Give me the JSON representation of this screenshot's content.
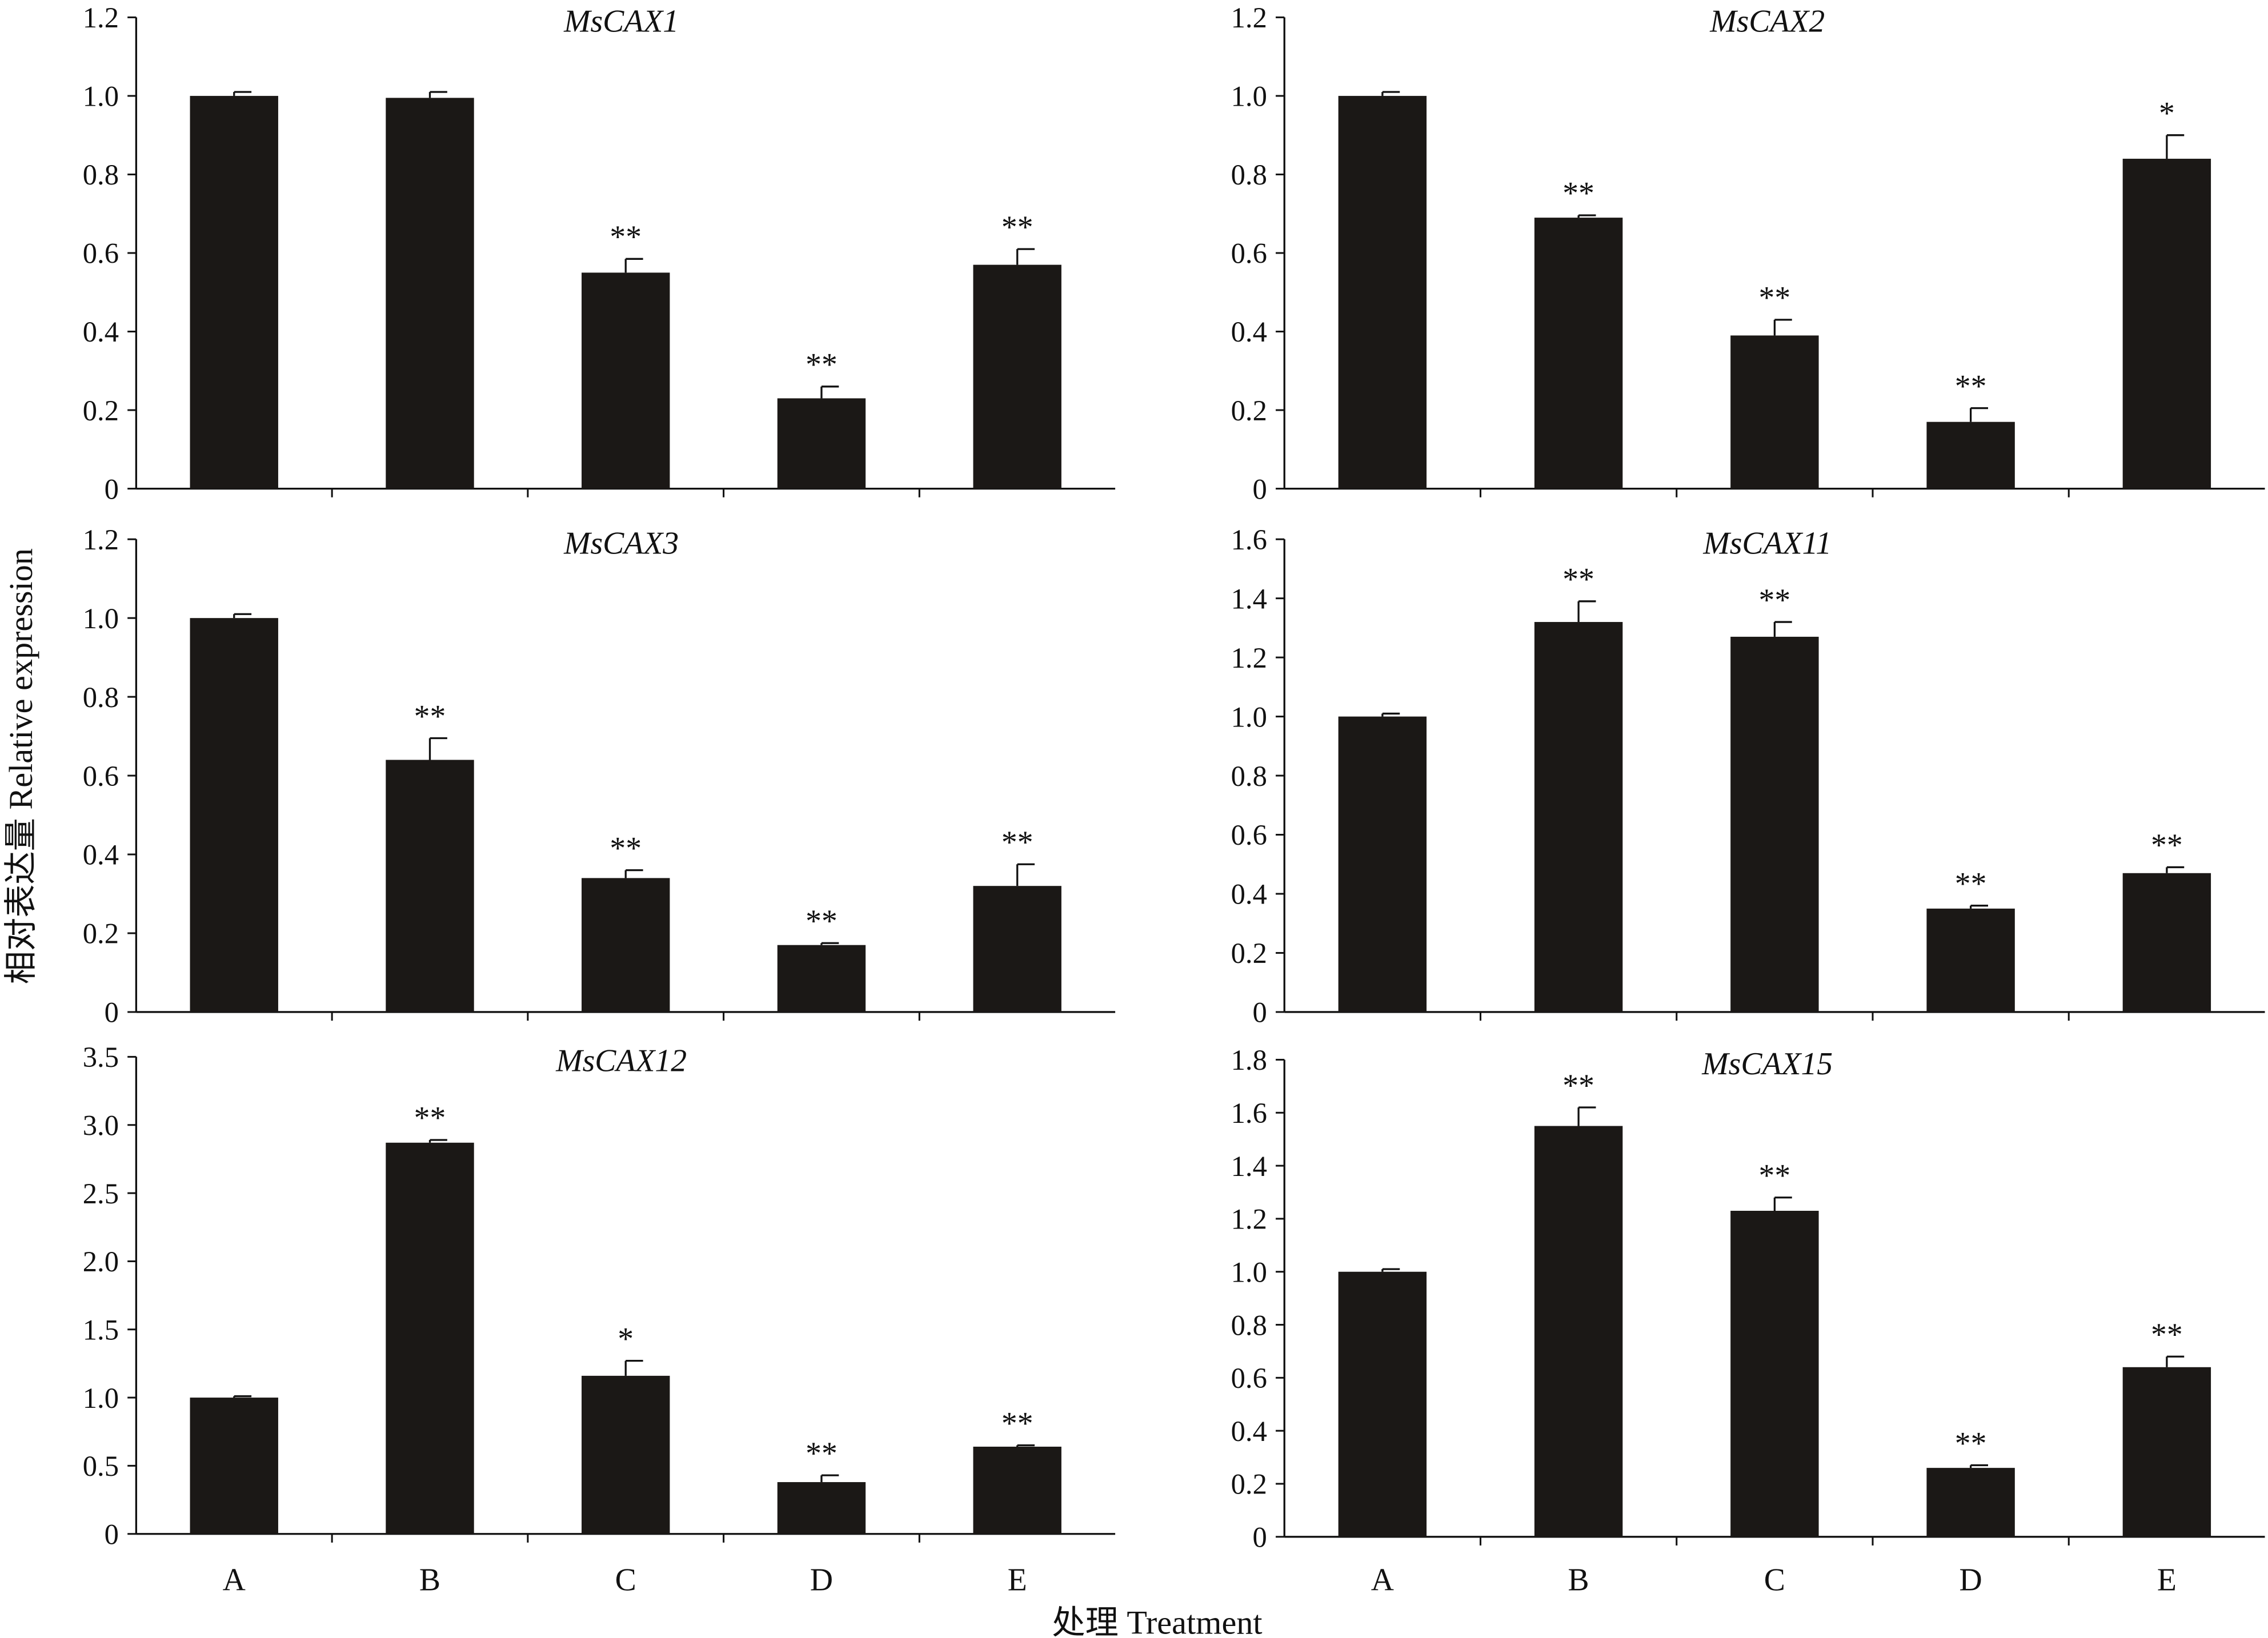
{
  "chart_data": {
    "type": "bar",
    "ylabel": "相对表达量 Relative expression",
    "xlabel": "处理 Treatment",
    "categories": [
      "A",
      "B",
      "C",
      "D",
      "E"
    ],
    "bar_color": "#1b1816",
    "panels": [
      {
        "title": "MsCAX1",
        "ylim": [
          0,
          1.2
        ],
        "ystep": 0.2,
        "yticks": [
          "0",
          "0.2",
          "0.4",
          "0.6",
          "0.8",
          "1.0",
          "1.2"
        ],
        "values": [
          1.0,
          0.995,
          0.55,
          0.23,
          0.57
        ],
        "errors": [
          0.01,
          0.015,
          0.035,
          0.03,
          0.04
        ],
        "significance": [
          "",
          "",
          "**",
          "**",
          "**"
        ]
      },
      {
        "title": "MsCAX2",
        "ylim": [
          0,
          1.2
        ],
        "ystep": 0.2,
        "yticks": [
          "0",
          "0.2",
          "0.4",
          "0.6",
          "0.8",
          "1.0",
          "1.2"
        ],
        "values": [
          1.0,
          0.69,
          0.39,
          0.17,
          0.84
        ],
        "errors": [
          0.01,
          0.006,
          0.04,
          0.035,
          0.06
        ],
        "significance": [
          "",
          "**",
          "**",
          "**",
          "*"
        ]
      },
      {
        "title": "MsCAX3",
        "ylim": [
          0,
          1.2
        ],
        "ystep": 0.2,
        "yticks": [
          "0",
          "0.2",
          "0.4",
          "0.6",
          "0.8",
          "1.0",
          "1.2"
        ],
        "values": [
          1.0,
          0.64,
          0.34,
          0.17,
          0.32
        ],
        "errors": [
          0.01,
          0.055,
          0.02,
          0.005,
          0.055
        ],
        "significance": [
          "",
          "**",
          "**",
          "**",
          "**"
        ]
      },
      {
        "title": "MsCAX11",
        "ylim": [
          0,
          1.6
        ],
        "ystep": 0.2,
        "yticks": [
          "0",
          "0.2",
          "0.4",
          "0.6",
          "0.8",
          "1.0",
          "1.2",
          "1.4",
          "1.6"
        ],
        "values": [
          1.0,
          1.32,
          1.27,
          0.35,
          0.47
        ],
        "errors": [
          0.01,
          0.07,
          0.05,
          0.01,
          0.02
        ],
        "significance": [
          "",
          "**",
          "**",
          "**",
          "**"
        ]
      },
      {
        "title": "MsCAX12",
        "ylim": [
          0,
          3.5
        ],
        "ystep": 0.5,
        "yticks": [
          "0",
          "0.5",
          "1.0",
          "1.5",
          "2.0",
          "2.5",
          "3.0",
          "3.5"
        ],
        "values": [
          1.0,
          2.87,
          1.16,
          0.38,
          0.64
        ],
        "errors": [
          0.01,
          0.02,
          0.11,
          0.05,
          0.01
        ],
        "significance": [
          "",
          "**",
          "*",
          "**",
          "**"
        ]
      },
      {
        "title": "MsCAX15",
        "ylim": [
          0,
          1.8
        ],
        "ystep": 0.2,
        "yticks": [
          "0",
          "0.2",
          "0.4",
          "0.6",
          "0.8",
          "1.0",
          "1.2",
          "1.4",
          "1.6",
          "1.8"
        ],
        "values": [
          1.0,
          1.55,
          1.23,
          0.26,
          0.64
        ],
        "errors": [
          0.01,
          0.07,
          0.05,
          0.01,
          0.04
        ],
        "significance": [
          "",
          "**",
          "**",
          "**",
          "**"
        ]
      }
    ]
  }
}
